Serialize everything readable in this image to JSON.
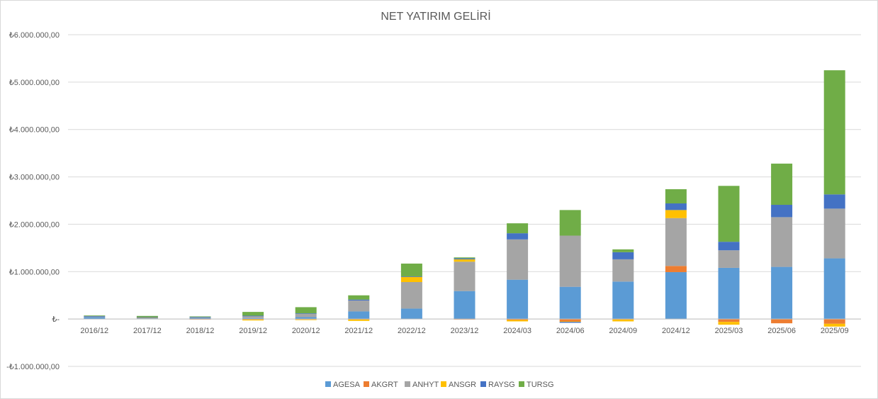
{
  "chart_data": {
    "type": "bar",
    "stacked": true,
    "title": "NET YATIRIM GELİRİ",
    "xlabel": "",
    "ylabel": "",
    "ylim": [
      -1000000,
      6000000
    ],
    "yticks": [
      -1000000,
      0,
      1000000,
      2000000,
      3000000,
      4000000,
      5000000,
      6000000
    ],
    "ytick_labels": [
      "-₺1.000.000,00",
      "₺-",
      "₺1.000.000,00",
      "₺2.000.000,00",
      "₺3.000.000,00",
      "₺4.000.000,00",
      "₺5.000.000,00",
      "₺6.000.000,00"
    ],
    "grid": true,
    "legend_position": "bottom",
    "categories": [
      "2016/12",
      "2017/12",
      "2018/12",
      "2019/12",
      "2020/12",
      "2021/12",
      "2022/12",
      "2023/12",
      "2024/03",
      "2024/06",
      "2024/09",
      "2024/12",
      "2025/03",
      "2025/06",
      "2025/09"
    ],
    "series": [
      {
        "name": "AGESA",
        "color": "#5b9bd5",
        "values": [
          40000,
          15000,
          25000,
          20000,
          40000,
          160000,
          220000,
          590000,
          830000,
          680000,
          790000,
          990000,
          1080000,
          1100000,
          1280000
        ]
      },
      {
        "name": "AKGRT",
        "color": "#ed7d31",
        "values": [
          0,
          0,
          -10000,
          -10000,
          -10000,
          -10000,
          0,
          -10000,
          -20000,
          -50000,
          -10000,
          130000,
          -60000,
          -90000,
          -100000
        ]
      },
      {
        "name": "ANHYT",
        "color": "#a5a5a5",
        "values": [
          15000,
          15000,
          10000,
          40000,
          70000,
          230000,
          560000,
          620000,
          850000,
          1080000,
          470000,
          1010000,
          370000,
          1050000,
          1050000
        ]
      },
      {
        "name": "ANSGR",
        "color": "#ffc000",
        "values": [
          0,
          5000,
          0,
          -20000,
          -10000,
          -30000,
          110000,
          50000,
          -30000,
          -10000,
          -40000,
          170000,
          -60000,
          0,
          -60000
        ]
      },
      {
        "name": "RAYSG",
        "color": "#4472c4",
        "values": [
          10000,
          5000,
          10000,
          10000,
          10000,
          20000,
          10000,
          20000,
          130000,
          -20000,
          150000,
          140000,
          180000,
          260000,
          300000
        ]
      },
      {
        "name": "TURSG",
        "color": "#70ad47",
        "values": [
          10000,
          25000,
          10000,
          80000,
          130000,
          90000,
          270000,
          20000,
          210000,
          540000,
          60000,
          300000,
          1180000,
          870000,
          2620000
        ]
      }
    ]
  }
}
